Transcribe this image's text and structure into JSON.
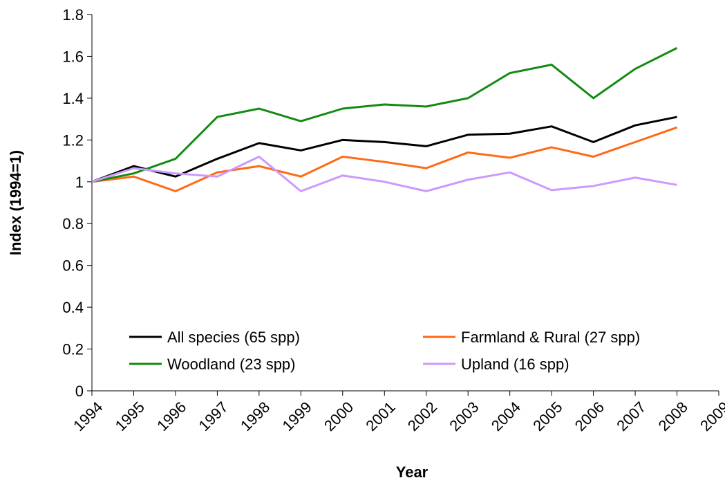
{
  "chart_data": {
    "type": "line",
    "x_label": "Year",
    "y_label": "Index (1994=1)",
    "x": [
      1994,
      1995,
      1996,
      1997,
      1998,
      1999,
      2000,
      2001,
      2002,
      2003,
      2004,
      2005,
      2006,
      2007,
      2008
    ],
    "series": [
      {
        "name": "All species (65 spp)",
        "color": "#000000",
        "values": [
          1.0,
          1.075,
          1.025,
          1.11,
          1.185,
          1.15,
          1.2,
          1.19,
          1.17,
          1.225,
          1.23,
          1.265,
          1.19,
          1.27,
          1.31
        ]
      },
      {
        "name": "Farmland & Rural (27 spp)",
        "color": "#ff6a13",
        "values": [
          1.0,
          1.025,
          0.955,
          1.045,
          1.075,
          1.025,
          1.12,
          1.095,
          1.065,
          1.14,
          1.115,
          1.165,
          1.12,
          1.19,
          1.26
        ]
      },
      {
        "name": "Woodland (23 spp)",
        "color": "#138a13",
        "values": [
          1.0,
          1.04,
          1.11,
          1.31,
          1.35,
          1.29,
          1.35,
          1.37,
          1.36,
          1.4,
          1.52,
          1.56,
          1.4,
          1.54,
          1.64
        ]
      },
      {
        "name": "Upland (16 spp)",
        "color": "#cc99ff",
        "values": [
          1.0,
          1.065,
          1.04,
          1.025,
          1.12,
          0.955,
          1.03,
          1.0,
          0.955,
          1.01,
          1.045,
          0.96,
          0.98,
          1.02,
          0.985
        ]
      }
    ],
    "xlim": [
      1994,
      2009
    ],
    "xticks": [
      1994,
      1995,
      1996,
      1997,
      1998,
      1999,
      2000,
      2001,
      2002,
      2003,
      2004,
      2005,
      2006,
      2007,
      2008,
      2009
    ],
    "ylim": [
      0,
      1.8
    ],
    "yticks": [
      0,
      0.2,
      0.4,
      0.6,
      0.8,
      1,
      1.2,
      1.4,
      1.6,
      1.8
    ],
    "grid": false,
    "legend": "bottom"
  }
}
